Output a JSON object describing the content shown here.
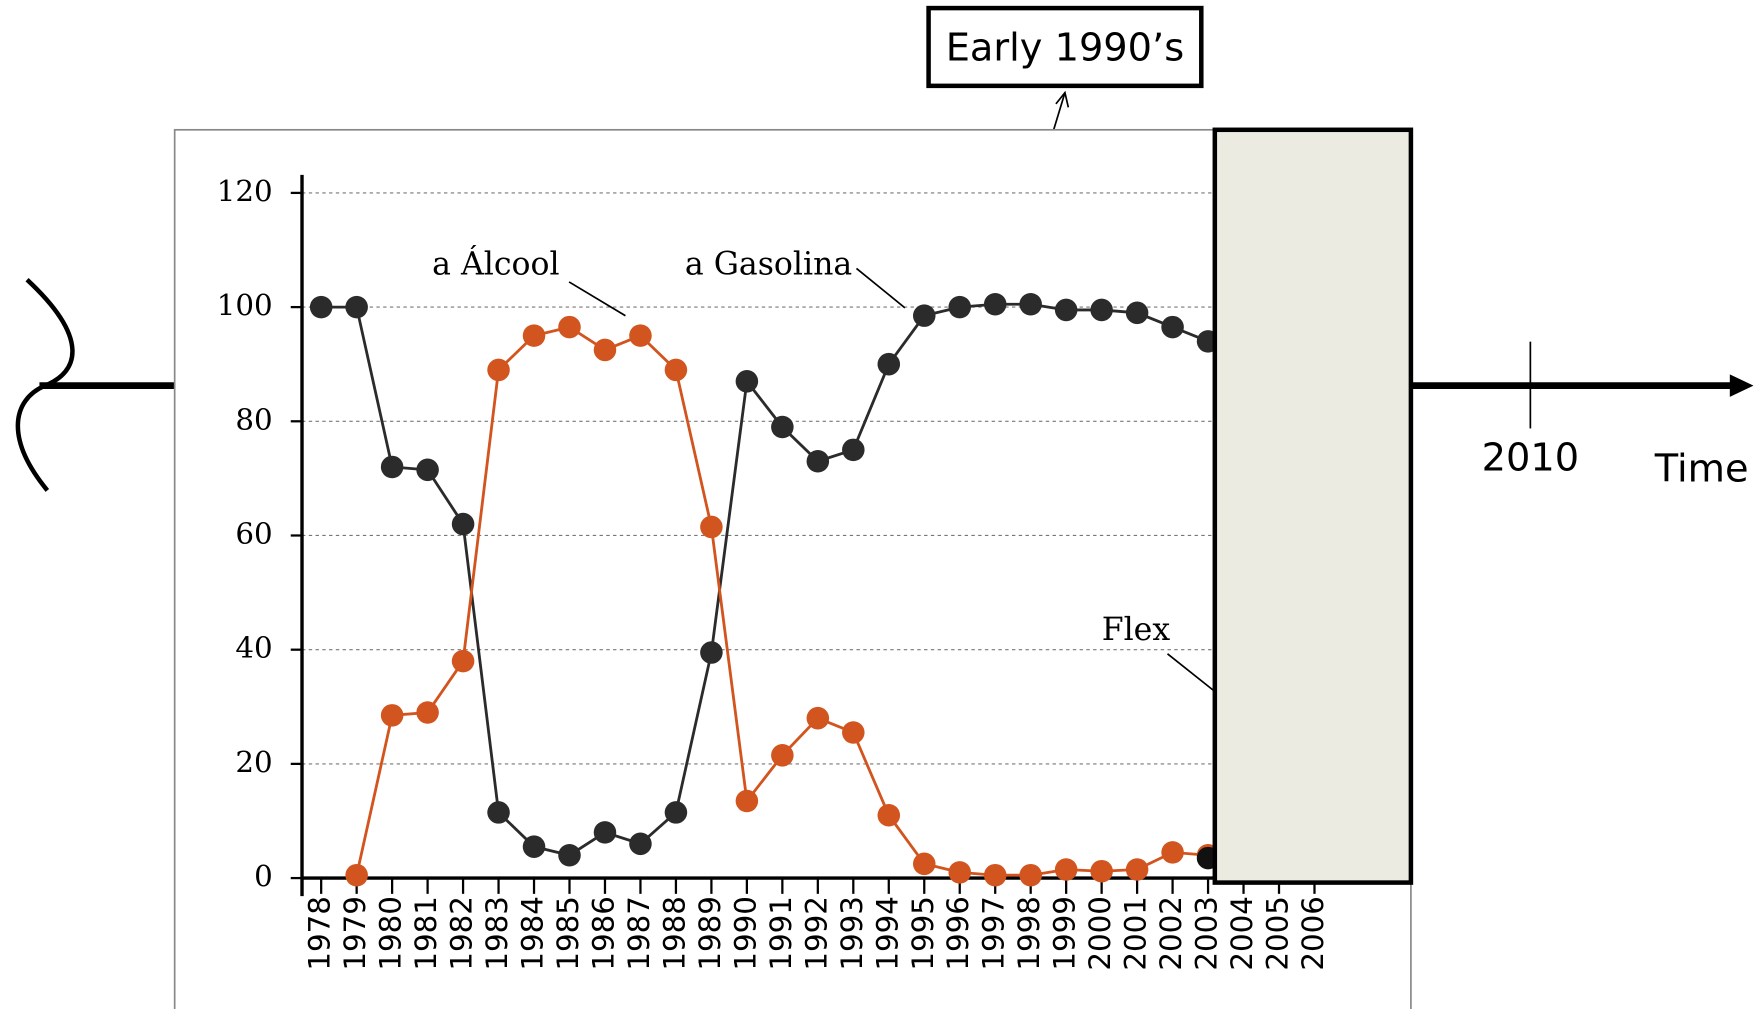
{
  "chart_data": {
    "type": "line",
    "categories": [
      "1978",
      "1979",
      "1980",
      "1981",
      "1982",
      "1983",
      "1984",
      "1985",
      "1986",
      "1987",
      "1988",
      "1989",
      "1990",
      "1991",
      "1992",
      "1993",
      "1994",
      "1995",
      "1996",
      "1997",
      "1998",
      "1999",
      "2000",
      "2001",
      "2002",
      "2003",
      "2004",
      "2005",
      "2006"
    ],
    "series": [
      {
        "name": "a Gasolina",
        "color": "#2b2b2b",
        "values": [
          100,
          100,
          72,
          71.5,
          62,
          11.5,
          5.5,
          4,
          8,
          6,
          11.5,
          39.5,
          87,
          79,
          73,
          75,
          90,
          98.5,
          100,
          100.5,
          100.5,
          99.5,
          99.5,
          99,
          96.5,
          94,
          null,
          null,
          null
        ]
      },
      {
        "name": "a Álcool",
        "color": "#d2541e",
        "values": [
          null,
          0.5,
          28.5,
          29,
          38,
          89,
          95,
          96.5,
          92.5,
          95,
          89,
          61.5,
          13.5,
          21.5,
          28,
          25.5,
          11,
          2.5,
          1,
          0.5,
          0.5,
          1.5,
          1.2,
          1.5,
          4.5,
          4,
          null,
          null,
          null
        ]
      },
      {
        "name": "Flex",
        "color": "#111111",
        "values": [
          null,
          null,
          null,
          null,
          null,
          null,
          null,
          null,
          null,
          null,
          null,
          null,
          null,
          null,
          null,
          null,
          null,
          null,
          null,
          null,
          null,
          null,
          null,
          null,
          null,
          3.5,
          null,
          null,
          null
        ]
      }
    ],
    "ylim": [
      0,
      120
    ],
    "yticks": [
      0,
      20,
      40,
      60,
      80,
      100,
      120
    ],
    "grid": true,
    "annotations": [
      "Early 1990’s",
      "2010",
      "Time"
    ]
  }
}
